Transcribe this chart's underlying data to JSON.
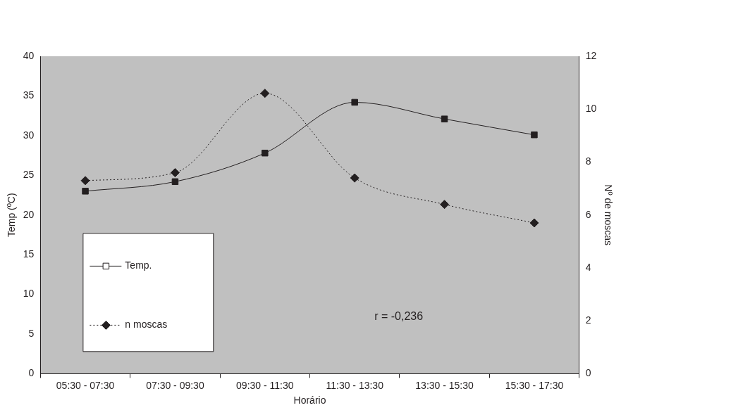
{
  "chart_data": {
    "type": "line",
    "xlabel": "Horário",
    "ylabel": "Temp (ºC)",
    "y2label": "Nº de moscas",
    "categories": [
      "05:30 - 07:30",
      "07:30 - 09:30",
      "09:30 - 11:30",
      "11:30 - 13:30",
      "13:30 - 15:30",
      "15:30 - 17:30"
    ],
    "series": [
      {
        "name": "Temp.",
        "color": "#231f20",
        "values": [
          23,
          24.2,
          27.8,
          34.2,
          32.1,
          30.1
        ],
        "marker": "square",
        "line_style": "solid"
      },
      {
        "name": "n moscas",
        "color": "#231f20",
        "values": [
          7.3,
          7.6,
          10.6,
          7.4,
          6.4,
          5.7
        ],
        "marker": "diamond",
        "line_style": "dotted",
        "axis": "y2"
      }
    ],
    "ylim": [
      0,
      40
    ],
    "yticks": [
      0,
      5,
      10,
      15,
      20,
      25,
      30,
      35,
      40
    ],
    "y2lim": [
      0,
      12
    ],
    "y2ticks": [
      0,
      2,
      4,
      6,
      8,
      10,
      12
    ],
    "legend": "bottom left",
    "annotations": [
      "r = -0,236"
    ]
  }
}
